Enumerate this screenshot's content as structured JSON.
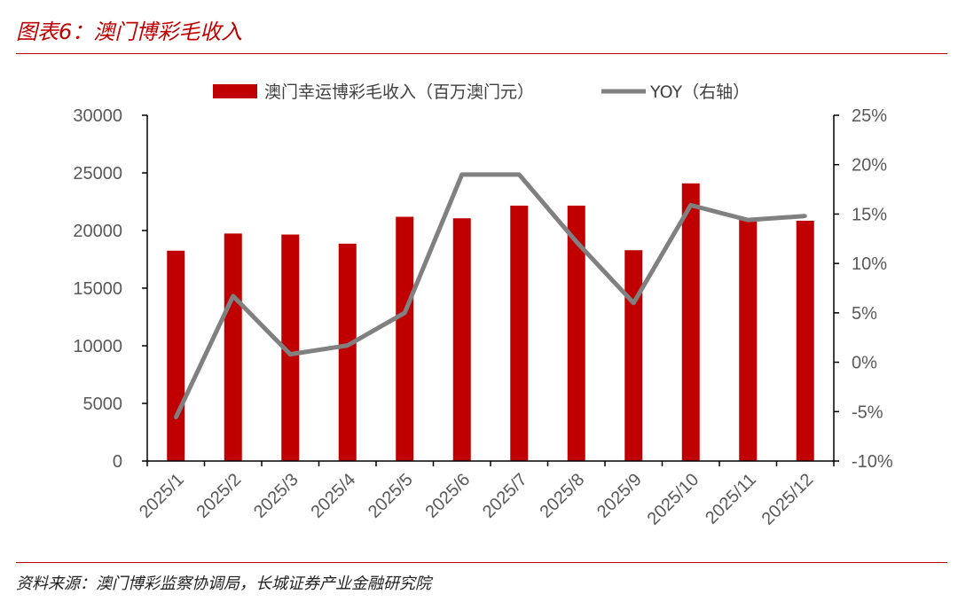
{
  "figure": {
    "title": "图表6：澳门博彩毛收入",
    "source": "资料来源：澳门博彩监察协调局，长城证券产业金融研究院"
  },
  "colors": {
    "bar": "#c00000",
    "line": "#808080",
    "axis": "#000000",
    "text": "#595959",
    "accent": "#c00000"
  },
  "chart_data": {
    "type": "bar",
    "title": "",
    "xlabel": "",
    "ylabel": "",
    "categories": [
      "2025/1",
      "2025/2",
      "2025/3",
      "2025/4",
      "2025/5",
      "2025/6",
      "2025/7",
      "2025/8",
      "2025/9",
      "2025/10",
      "2025/11",
      "2025/12"
    ],
    "series": [
      {
        "name": "澳门幸运博彩毛收入（百万澳门元）",
        "type": "bar",
        "axis": "left",
        "values": [
          18250,
          19740,
          19650,
          18860,
          21190,
          21060,
          22160,
          22160,
          18290,
          24090,
          21090,
          20850
        ]
      },
      {
        "name": "YOY（右轴）",
        "type": "line",
        "axis": "right",
        "values": [
          -5.6,
          6.7,
          0.8,
          1.7,
          5.0,
          19.0,
          19.0,
          12.2,
          6.0,
          15.9,
          14.4,
          14.8
        ]
      }
    ],
    "left_axis": {
      "ylim": [
        0,
        30000
      ],
      "ticks": [
        "0",
        "5000",
        "10000",
        "15000",
        "20000",
        "25000",
        "30000"
      ]
    },
    "right_axis": {
      "ylim": [
        -10,
        25
      ],
      "ticks": [
        "-10%",
        "-5%",
        "0%",
        "5%",
        "10%",
        "15%",
        "20%",
        "25%"
      ]
    },
    "legend": {
      "position": "top",
      "labels": [
        "澳门幸运博彩毛收入（百万澳门元）",
        "YOY（右轴）"
      ]
    },
    "grid": false
  }
}
